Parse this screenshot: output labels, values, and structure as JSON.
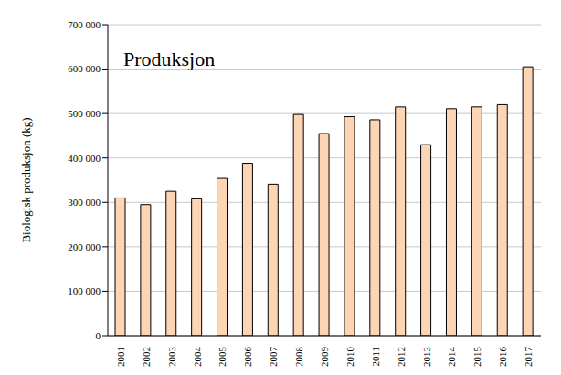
{
  "chart_data": {
    "type": "bar",
    "title": "Produksjon",
    "y_label": "Biologisk produksjon (kg)",
    "categories": [
      "2001",
      "2002",
      "2003",
      "2004",
      "2005",
      "2006",
      "2007",
      "2008",
      "2009",
      "2010",
      "2011",
      "2012",
      "2013",
      "2014",
      "2015",
      "2016",
      "2017"
    ],
    "values": [
      310000,
      295000,
      325000,
      308000,
      354000,
      388000,
      341000,
      498000,
      455000,
      493000,
      486000,
      515000,
      430000,
      511000,
      515000,
      520000,
      605000
    ],
    "color": "#fcd5b5",
    "ylim": [
      0,
      700000
    ],
    "yticks": [
      0,
      {
        "value": 100000,
        "label": "100 000"
      },
      {
        "value": 200000,
        "label": "200 000"
      },
      {
        "value": 300000,
        "label": "300 000"
      },
      {
        "value": 400000,
        "label": "400 000"
      },
      {
        "value": 500000,
        "label": "500 000"
      },
      {
        "value": 600000,
        "label": "600 000"
      },
      {
        "value": 700000,
        "label": "700 000"
      }
    ],
    "grid": true
  }
}
